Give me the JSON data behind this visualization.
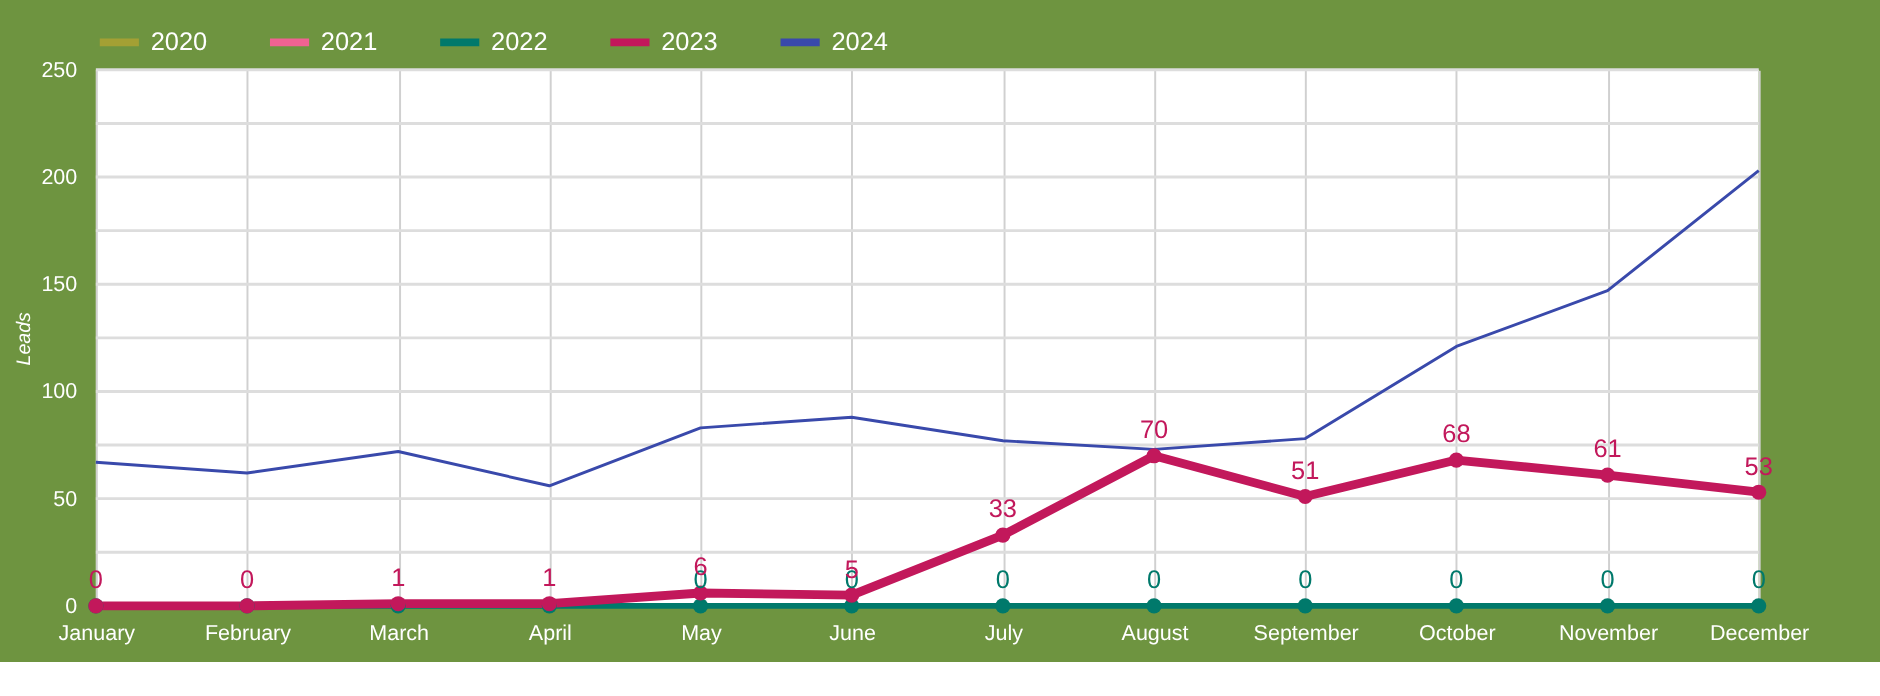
{
  "chart_data": {
    "type": "line",
    "ylabel": "Leads",
    "categories": [
      "January",
      "February",
      "March",
      "April",
      "May",
      "June",
      "July",
      "August",
      "September",
      "October",
      "November",
      "December"
    ],
    "series": [
      {
        "name": "2020",
        "color": "#a3a034",
        "marker": "circle",
        "values": [
          null,
          null,
          null,
          null,
          null,
          null,
          null,
          null,
          null,
          null,
          null,
          null
        ]
      },
      {
        "name": "2021",
        "color": "#f06292",
        "marker": "circle",
        "values": [
          null,
          null,
          null,
          null,
          null,
          null,
          null,
          null,
          null,
          null,
          null,
          null
        ]
      },
      {
        "name": "2022",
        "color": "#00796b",
        "marker": "circle",
        "values": [
          0,
          0,
          0,
          0,
          0,
          0,
          0,
          0,
          0,
          0,
          0,
          0
        ],
        "value_labels": [
          null,
          null,
          null,
          null,
          "0",
          "0",
          "0",
          "0",
          "0",
          "0",
          "0",
          "0"
        ]
      },
      {
        "name": "2023",
        "color": "#c2185b",
        "marker": "circle",
        "values": [
          0,
          0,
          1,
          1,
          6,
          5,
          33,
          70,
          51,
          68,
          61,
          53
        ],
        "value_labels": [
          "0",
          "0",
          "1",
          "1",
          "6",
          "5",
          "33",
          "70",
          "51",
          "68",
          "61",
          "53"
        ]
      },
      {
        "name": "2024",
        "color": "#3949ab",
        "marker": "none",
        "values": [
          67,
          62,
          72,
          56,
          83,
          88,
          77,
          73,
          78,
          121,
          147,
          203
        ]
      }
    ],
    "ylim": [
      0,
      250
    ],
    "yticks": [
      0,
      {
        "value": 25,
        "label": null
      },
      50,
      {
        "value": 75,
        "label": null
      },
      100,
      {
        "value": 125,
        "label": null
      },
      150,
      {
        "value": 175,
        "label": null
      },
      200,
      {
        "value": 225,
        "label": null
      },
      250
    ],
    "grid": true,
    "legend": "top"
  }
}
